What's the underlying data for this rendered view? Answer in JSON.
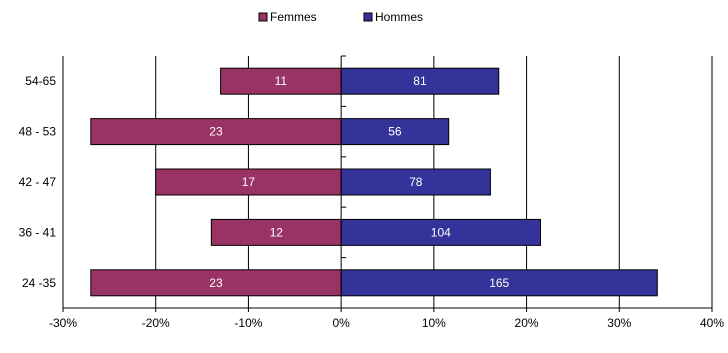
{
  "chart_data": {
    "type": "bar",
    "orientation": "horizontal",
    "layout": "population-pyramid (diverging)",
    "categories": [
      "54-65",
      "48 - 53",
      "42 - 47",
      "36 - 41",
      "24 -35"
    ],
    "series": [
      {
        "name": "Femmes",
        "color": "#993366",
        "side": "left",
        "percent": [
          -13,
          -27,
          -20,
          -14,
          -27
        ],
        "labels": [
          "11",
          "23",
          "17",
          "12",
          "23"
        ]
      },
      {
        "name": "Hommes",
        "color": "#333399",
        "side": "right",
        "percent": [
          17,
          11.6,
          16.1,
          21.5,
          34.1
        ],
        "labels": [
          "81",
          "56",
          "78",
          "104",
          "165"
        ]
      }
    ],
    "xlim": [
      -30,
      40
    ],
    "xticks": [
      -30,
      -20,
      -10,
      0,
      10,
      20,
      30,
      40
    ],
    "xtick_labels": [
      "-30%",
      "-20%",
      "-10%",
      "0%",
      "10%",
      "20%",
      "30%",
      "40%"
    ],
    "grid": "vertical",
    "legend_position": "top-center"
  }
}
